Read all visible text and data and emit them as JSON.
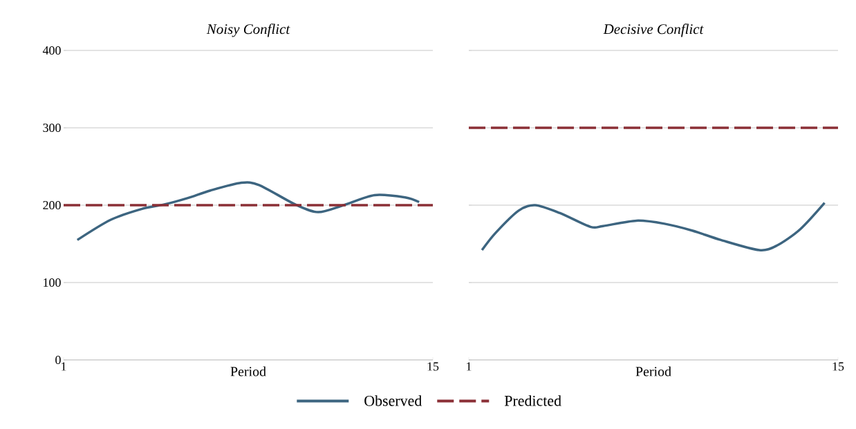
{
  "chart_data": [
    {
      "type": "line",
      "title": "Noisy Conflict",
      "xlabel": "Period",
      "xlim": [
        1,
        15
      ],
      "xticks": [
        1,
        15
      ],
      "ylim": [
        0,
        400
      ],
      "yticks": [
        0,
        100,
        200,
        300,
        400
      ],
      "grid": "y",
      "legend": "bottom",
      "series": [
        {
          "name": "Observed",
          "color": "#3d6580",
          "line_style": "solid",
          "x": [
            1.52,
            2.78,
            3.95,
            4.82,
            5.69,
            6.57,
            7.74,
            8.41,
            9.78,
            10.65,
            11.62,
            12.79,
            13.95,
            14.48
          ],
          "values": [
            155,
            181,
            195,
            201,
            209,
            219,
            229,
            226,
            201,
            191,
            200,
            213,
            210,
            204
          ]
        },
        {
          "name": "Predicted",
          "color": "#8b2f36",
          "line_style": "dashed",
          "x": [
            1,
            15
          ],
          "values": [
            200,
            200
          ]
        }
      ]
    },
    {
      "type": "line",
      "title": "Decisive Conflict",
      "xlabel": "Period",
      "xlim": [
        1,
        15
      ],
      "xticks": [
        1,
        15
      ],
      "ylim": [
        0,
        400
      ],
      "yticks": [
        0,
        100,
        200,
        300,
        400
      ],
      "grid": "y",
      "tick_labels": "x",
      "series": [
        {
          "color": "#3d6580",
          "line_style": "solid",
          "x": [
            1.5,
            2.01,
            2.89,
            3.52,
            4.44,
            5.61,
            6.09,
            7.36,
            8.42,
            9.49,
            10.56,
            12.01,
            12.69,
            13.57,
            14.49
          ],
          "values": [
            142,
            164,
            193,
            200,
            190,
            172,
            173,
            180,
            176,
            167,
            155,
            142,
            148,
            169,
            203
          ]
        },
        {
          "color": "#8b2f36",
          "line_style": "dashed",
          "x": [
            1,
            15
          ],
          "values": [
            300,
            300
          ]
        }
      ]
    }
  ]
}
